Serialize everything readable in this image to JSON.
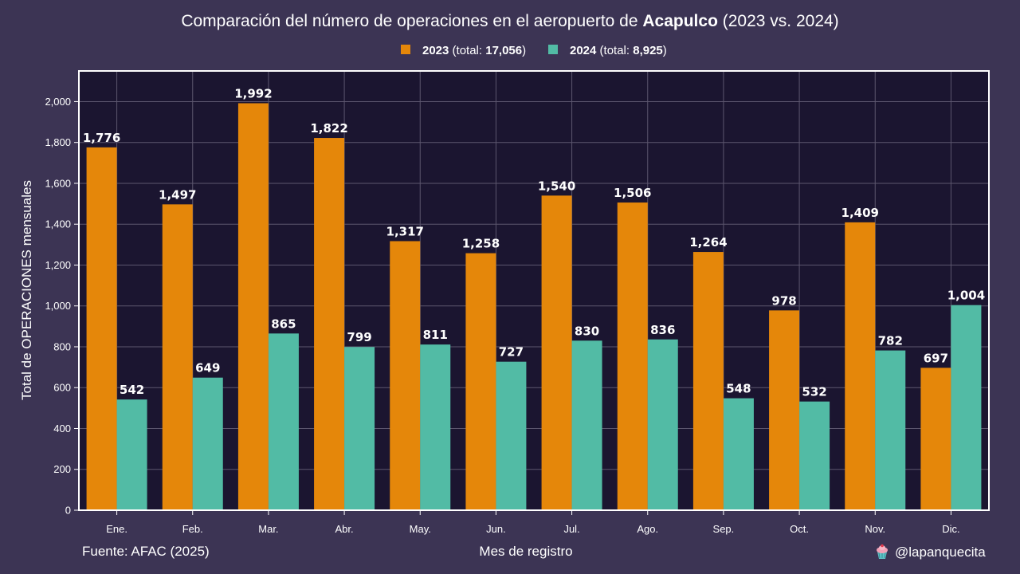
{
  "header": {
    "title_prefix": "Comparación del número de operaciones en el aeropuerto de ",
    "title_bold": "Acapulco",
    "title_suffix": " (2023 vs. 2024)"
  },
  "legend": [
    {
      "name_bold": "2023",
      "detail_prefix": " (total: ",
      "detail_bold": "17,056",
      "detail_suffix": ")",
      "color": "#e5870a"
    },
    {
      "name_bold": "2024",
      "detail_prefix": " (total: ",
      "detail_bold": "8,925",
      "detail_suffix": ")",
      "color": "#52bba5"
    }
  ],
  "footer": {
    "source": "Fuente: AFAC (2025)",
    "handle": "@lapanquecita",
    "handle_icon": "cupcake-icon"
  },
  "colors": {
    "background": "#3c3454",
    "plot_background": "#1b1530",
    "grid": "#5c566e",
    "series_2023": "#e5870a",
    "series_2024": "#52bba5"
  },
  "chart_data": {
    "type": "bar",
    "xlabel": "Mes de registro",
    "ylabel": "Total de OPERACIONES mensuales",
    "ylim": [
      0,
      2150
    ],
    "yticks": [
      0,
      200,
      400,
      600,
      800,
      1000,
      1200,
      1400,
      1600,
      1800,
      2000
    ],
    "ytick_labels": [
      "0",
      "200",
      "400",
      "600",
      "800",
      "1,000",
      "1,200",
      "1,400",
      "1,600",
      "1,800",
      "2,000"
    ],
    "grid": true,
    "legend_position": "top-center",
    "categories": [
      "Ene.",
      "Feb.",
      "Mar.",
      "Abr.",
      "May.",
      "Jun.",
      "Jul.",
      "Ago.",
      "Sep.",
      "Oct.",
      "Nov.",
      "Dic."
    ],
    "series": [
      {
        "name": "2023",
        "color": "#e5870a",
        "values": [
          1776,
          1497,
          1992,
          1822,
          1317,
          1258,
          1540,
          1506,
          1264,
          978,
          1409,
          697
        ],
        "labels": [
          "1,776",
          "1,497",
          "1,992",
          "1,822",
          "1,317",
          "1,258",
          "1,540",
          "1,506",
          "1,264",
          "978",
          "1,409",
          "697"
        ]
      },
      {
        "name": "2024",
        "color": "#52bba5",
        "values": [
          542,
          649,
          865,
          799,
          811,
          727,
          830,
          836,
          548,
          532,
          782,
          1004
        ],
        "labels": [
          "542",
          "649",
          "865",
          "799",
          "811",
          "727",
          "830",
          "836",
          "548",
          "532",
          "782",
          "1,004"
        ]
      }
    ]
  }
}
